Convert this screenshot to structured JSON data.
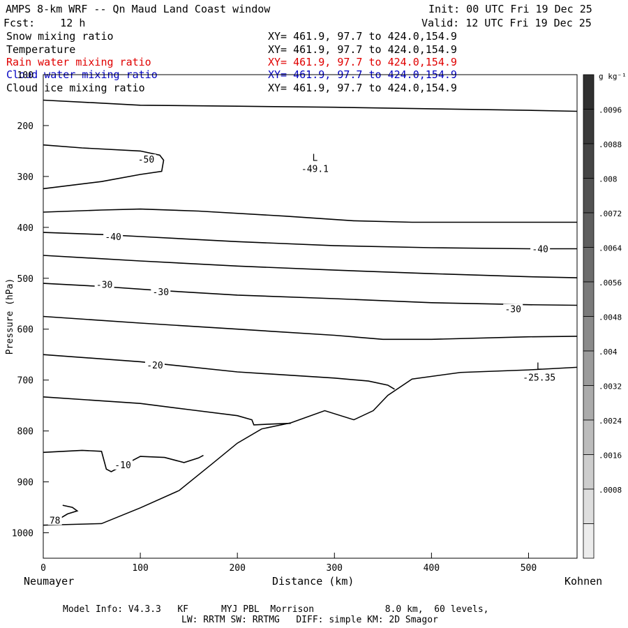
{
  "header": {
    "title": "AMPS 8-km WRF -- Qn Maud Land Coast window",
    "fcst": "Fcst:    12 h",
    "init": "Init: 00 UTC Fri 19 Dec 25",
    "valid": "Valid: 12 UTC Fri 19 Dec 25"
  },
  "legend_rows": [
    {
      "label": "Snow mixing ratio",
      "xy": "XY= 461.9, 97.7 to 424.0,154.9",
      "color": "#000000"
    },
    {
      "label": "Temperature",
      "xy": "XY= 461.9, 97.7 to 424.0,154.9",
      "color": "#000000"
    },
    {
      "label": "Rain water mixing ratio",
      "xy": "XY= 461.9, 97.7 to 424.0,154.9",
      "color": "#e00000"
    },
    {
      "label": "Cloud water mixing ratio",
      "xy": "XY= 461.9, 97.7 to 424.0,154.9",
      "color": "#0000c0"
    },
    {
      "label": "Cloud ice mixing ratio",
      "xy": "XY= 461.9, 97.7 to 424.0,154.9",
      "color": "#000000"
    }
  ],
  "footer": {
    "line1": "Model Info: V4.3.3   KF      MYJ PBL  Morrison             8.0 km,  60 levels,",
    "line2": "LW: RRTM SW: RRTMG   DIFF: simple KM: 2D Smagor"
  },
  "chart_data": {
    "type": "contour",
    "xlabel": "Distance (km)",
    "ylabel": "Pressure (hPa)",
    "xlim": [
      0,
      550
    ],
    "ylim": [
      1050,
      100
    ],
    "x_ticks": [
      0,
      100,
      200,
      300,
      400,
      500
    ],
    "y_ticks": [
      100,
      200,
      300,
      400,
      500,
      600,
      700,
      800,
      900,
      1000
    ],
    "x_end_labels": {
      "left": "Neumayer",
      "right": "Kohnen"
    },
    "colorbar": {
      "unit": "g kg⁻¹",
      "levels": [
        "0.0096",
        ".0088",
        ".008",
        ".0072",
        ".0064",
        ".0056",
        ".0048",
        ".004",
        ".0032",
        ".0024",
        ".0016",
        ".0008"
      ],
      "shades": [
        "#303030",
        "#3a3a3a",
        "#454545",
        "#525252",
        "#5e5e5e",
        "#6c6c6c",
        "#7a7a7a",
        "#8a8a8a",
        "#9b9b9b",
        "#ababab",
        "#bcbcbc",
        "#cdcdcd",
        "#dedede",
        "#ececec"
      ],
      "tick_labels": [
        ".0096",
        ".0088",
        ".008",
        ".0072",
        ".0064",
        ".0056",
        ".0048",
        ".004",
        ".0032",
        ".0024",
        ".0016",
        ".0008"
      ]
    },
    "contour_labels": [
      {
        "text": "-50",
        "x": 106,
        "p": 266
      },
      {
        "text": "-40",
        "x": 72,
        "p": 418
      },
      {
        "text": "-40",
        "x": 512,
        "p": 442
      },
      {
        "text": "-30",
        "x": 63,
        "p": 512
      },
      {
        "text": "-30",
        "x": 121,
        "p": 526
      },
      {
        "text": "-30",
        "x": 484,
        "p": 560
      },
      {
        "text": "-20",
        "x": 115,
        "p": 670
      },
      {
        "text": "-10",
        "x": 82,
        "p": 866
      },
      {
        "text": "78",
        "x": 12,
        "p": 975
      }
    ],
    "extrema": [
      {
        "mark": "L",
        "value": "-49.1",
        "x": 280,
        "p": 280
      },
      {
        "mark": "L",
        "value": "-25.35",
        "x": 511,
        "p": 690
      }
    ],
    "temperature_isotherms": [
      {
        "x": [
          0,
          50,
          100,
          200,
          300,
          400,
          500,
          550
        ],
        "p": [
          150,
          155,
          160,
          162,
          164,
          167,
          170,
          172
        ]
      },
      {
        "x": [
          0,
          40,
          100,
          120,
          124,
          122,
          100,
          60,
          0
        ],
        "p": [
          238,
          244,
          250,
          258,
          268,
          290,
          296,
          310,
          324
        ]
      },
      {
        "x": [
          0,
          60,
          100,
          160,
          250,
          320,
          380,
          450,
          550
        ],
        "p": [
          370,
          366,
          364,
          368,
          378,
          387,
          390,
          390,
          390
        ]
      },
      {
        "x": [
          0,
          60,
          100,
          200,
          300,
          400,
          500,
          550
        ],
        "p": [
          410,
          414,
          418,
          428,
          436,
          440,
          442,
          442
        ]
      },
      {
        "x": [
          0,
          100,
          200,
          300,
          400,
          500,
          550
        ],
        "p": [
          455,
          466,
          476,
          484,
          491,
          497,
          499
        ]
      },
      {
        "x": [
          0,
          60,
          120,
          200,
          300,
          400,
          500,
          550
        ],
        "p": [
          510,
          516,
          524,
          533,
          540,
          548,
          552,
          553
        ]
      },
      {
        "x": [
          0,
          100,
          200,
          300,
          350,
          400,
          500,
          550
        ],
        "p": [
          575,
          588,
          600,
          612,
          620,
          620,
          615,
          614
        ]
      },
      {
        "x": [
          0,
          100,
          200,
          300,
          335,
          355,
          362
        ],
        "p": [
          650,
          664,
          684,
          696,
          702,
          710,
          718
        ]
      },
      {
        "x": [
          0,
          100,
          150,
          200,
          215,
          217,
          240,
          255
        ],
        "p": [
          733,
          746,
          758,
          770,
          778,
          788,
          786,
          785
        ]
      },
      {
        "x": [
          0,
          40,
          60,
          65,
          70,
          100,
          125,
          145,
          160,
          165
        ],
        "p": [
          842,
          838,
          840,
          875,
          880,
          850,
          852,
          862,
          853,
          848
        ]
      },
      {
        "x": [
          10,
          25,
          35,
          30,
          20
        ],
        "p": [
          980,
          963,
          957,
          950,
          946
        ]
      }
    ],
    "terrain": {
      "x": [
        0,
        60,
        100,
        140,
        175,
        200,
        225,
        255,
        290,
        320,
        340,
        355,
        380,
        430,
        500,
        550
      ],
      "p": [
        985,
        982,
        951,
        917,
        863,
        824,
        796,
        784,
        760,
        778,
        760,
        730,
        698,
        685,
        680,
        675
      ]
    }
  }
}
